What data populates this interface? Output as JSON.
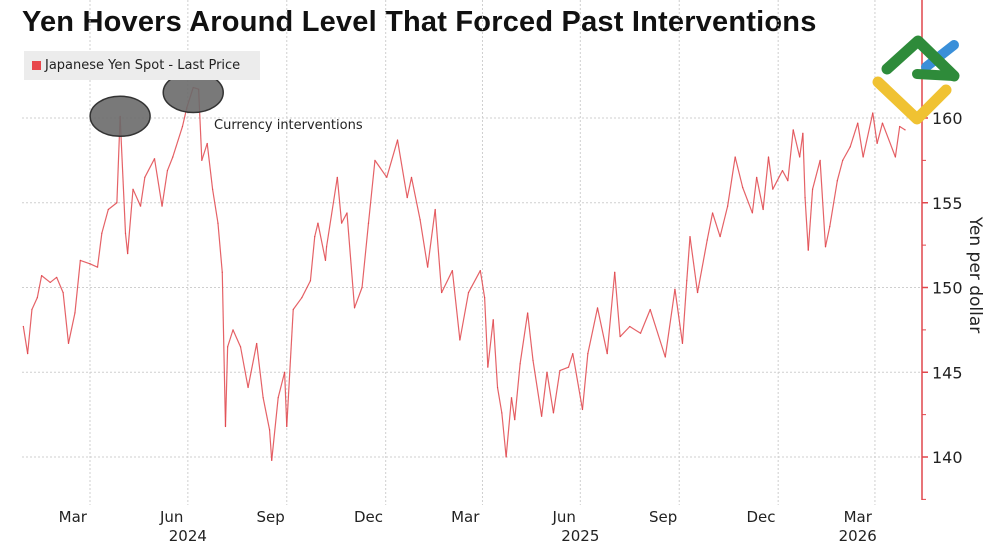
{
  "title": "Yen Hovers Around Level That Forced Past Interventions",
  "colors": {
    "series": "#e0474c",
    "axis": "#e0474c",
    "annotation_fill": "#6a6a6a",
    "grid": "#cfcfcf",
    "logo_green": "#2e8b3a",
    "logo_yellow": "#f0c232",
    "logo_blue": "#3a8fd9"
  },
  "logo": "logo-mark",
  "chart_data": {
    "type": "line",
    "title": "Yen Hovers Around Level That Forced Past Interventions",
    "ylabel": "Yen per dollar",
    "xlabel": "",
    "ylim": [
      137.5,
      165
    ],
    "yaxis_position": "right",
    "yticks": [
      "160",
      "155",
      "150",
      "145",
      "140"
    ],
    "ytick_values": [
      160,
      155,
      150,
      145,
      140
    ],
    "xticks": [
      {
        "label": "Mar",
        "date": "2024-03-16"
      },
      {
        "label": "Jun",
        "date": "2024-06-16"
      },
      {
        "label": "Sep",
        "date": "2024-09-16"
      },
      {
        "label": "Dec",
        "date": "2024-12-16"
      },
      {
        "label": "Mar",
        "date": "2025-03-16"
      },
      {
        "label": "Jun",
        "date": "2025-06-16"
      },
      {
        "label": "Sep",
        "date": "2025-09-16"
      },
      {
        "label": "Dec",
        "date": "2025-12-16"
      },
      {
        "label": "Mar",
        "date": "2026-03-16"
      }
    ],
    "year_labels": [
      {
        "label": "2024",
        "date": "2024-07-01"
      },
      {
        "label": "2025",
        "date": "2025-07-01"
      },
      {
        "label": "2026",
        "date": "2026-03-16"
      }
    ],
    "grid": true,
    "legend": {
      "placement": "top-left",
      "entries": [
        "Japanese Yen Spot - Last Price"
      ]
    },
    "annotation": {
      "text": "Currency interventions",
      "marked_dates": [
        "2024-04-29",
        "2024-07-06"
      ]
    },
    "series": [
      {
        "name": "Japanese Yen Spot - Last Price",
        "x": [
          "2024-01-30",
          "2024-02-03",
          "2024-02-07",
          "2024-02-12",
          "2024-02-16",
          "2024-02-24",
          "2024-03-01",
          "2024-03-07",
          "2024-03-12",
          "2024-03-18",
          "2024-03-23",
          "2024-04-01",
          "2024-04-08",
          "2024-04-12",
          "2024-04-18",
          "2024-04-26",
          "2024-04-29",
          "2024-05-04",
          "2024-05-06",
          "2024-05-11",
          "2024-05-18",
          "2024-05-22",
          "2024-05-31",
          "2024-06-07",
          "2024-06-12",
          "2024-06-17",
          "2024-06-26",
          "2024-06-30",
          "2024-07-06",
          "2024-07-11",
          "2024-07-14",
          "2024-07-19",
          "2024-07-24",
          "2024-07-29",
          "2024-08-02",
          "2024-08-05",
          "2024-08-07",
          "2024-08-12",
          "2024-08-19",
          "2024-08-26",
          "2024-09-03",
          "2024-09-09",
          "2024-09-15",
          "2024-09-17",
          "2024-09-23",
          "2024-09-29",
          "2024-10-01",
          "2024-10-07",
          "2024-10-15",
          "2024-10-23",
          "2024-10-27",
          "2024-10-30",
          "2024-11-06",
          "2024-11-07",
          "2024-11-17",
          "2024-11-21",
          "2024-11-26",
          "2024-12-03",
          "2024-12-10",
          "2024-12-16",
          "2024-12-22",
          "2025-01-02",
          "2025-01-12",
          "2025-01-21",
          "2025-01-25",
          "2025-02-02",
          "2025-02-09",
          "2025-02-16",
          "2025-02-22",
          "2025-03-04",
          "2025-03-11",
          "2025-03-19",
          "2025-03-30",
          "2025-04-03",
          "2025-04-06",
          "2025-04-11",
          "2025-04-15",
          "2025-04-19",
          "2025-04-23",
          "2025-04-28",
          "2025-05-01",
          "2025-05-06",
          "2025-05-13",
          "2025-05-18",
          "2025-05-26",
          "2025-05-31",
          "2025-06-06",
          "2025-06-12",
          "2025-06-20",
          "2025-06-24",
          "2025-07-03",
          "2025-07-08",
          "2025-07-17",
          "2025-07-26",
          "2025-08-02",
          "2025-08-07",
          "2025-08-16",
          "2025-08-26",
          "2025-09-04",
          "2025-09-18",
          "2025-09-27",
          "2025-10-04",
          "2025-10-08",
          "2025-10-11",
          "2025-10-18",
          "2025-10-27",
          "2025-11-01",
          "2025-11-08",
          "2025-11-15",
          "2025-11-22",
          "2025-11-29",
          "2025-12-08",
          "2025-12-12",
          "2025-12-18",
          "2025-12-23",
          "2025-12-27",
          "2026-01-05",
          "2026-01-10",
          "2026-01-15",
          "2026-01-21",
          "2026-01-24",
          "2026-01-26",
          "2026-01-29",
          "2026-02-02",
          "2026-02-09",
          "2026-02-14",
          "2026-02-18",
          "2026-02-25",
          "2026-03-02",
          "2026-03-09",
          "2026-03-16",
          "2026-03-21",
          "2026-03-30",
          "2026-04-03",
          "2026-04-08",
          "2026-04-20",
          "2026-04-24",
          "2026-04-29"
        ],
        "y": [
          147.7,
          146.1,
          148.7,
          149.4,
          150.7,
          150.3,
          150.6,
          149.7,
          146.7,
          148.5,
          151.6,
          151.4,
          151.2,
          153.2,
          154.6,
          155.0,
          160.1,
          153.2,
          152.0,
          155.8,
          154.8,
          156.5,
          157.6,
          154.8,
          156.9,
          157.7,
          159.5,
          160.6,
          161.8,
          161.7,
          157.5,
          158.5,
          155.8,
          153.8,
          150.9,
          141.8,
          146.5,
          147.5,
          146.5,
          144.1,
          146.7,
          143.5,
          141.6,
          139.8,
          143.5,
          145.0,
          141.8,
          148.7,
          149.4,
          150.4,
          153.0,
          153.8,
          151.6,
          152.4,
          156.5,
          153.8,
          154.4,
          148.8,
          150.0,
          153.8,
          157.5,
          156.5,
          158.7,
          155.3,
          156.5,
          154.0,
          151.2,
          154.6,
          149.7,
          151.0,
          146.9,
          149.7,
          151.0,
          149.4,
          145.3,
          148.1,
          144.1,
          142.6,
          140.0,
          143.5,
          142.2,
          145.5,
          148.5,
          145.7,
          142.4,
          145.0,
          142.6,
          145.1,
          145.3,
          146.1,
          142.8,
          146.1,
          148.8,
          146.1,
          150.9,
          147.1,
          147.7,
          147.3,
          148.7,
          145.9,
          149.9,
          146.7,
          150.4,
          153.0,
          149.7,
          152.8,
          154.4,
          153.0,
          154.8,
          157.7,
          155.9,
          154.4,
          156.5,
          154.6,
          157.7,
          155.8,
          156.9,
          156.3,
          159.3,
          157.7,
          159.1,
          155.3,
          152.2,
          155.8,
          157.5,
          152.4,
          153.6,
          156.3,
          157.5,
          158.3,
          159.7,
          157.7,
          160.3,
          158.5,
          159.7,
          157.7,
          159.5,
          159.3
        ]
      }
    ]
  }
}
